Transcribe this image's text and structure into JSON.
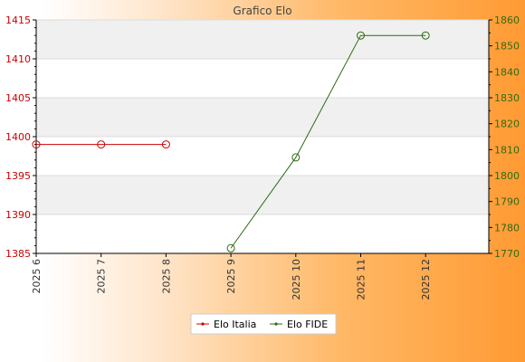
{
  "chart_data": {
    "type": "line",
    "title": "Grafico Elo",
    "categories": [
      "2025 6",
      "2025 7",
      "2025 8",
      "2025 9",
      "2025 10",
      "2025 11",
      "2025 12"
    ],
    "y_left": {
      "min": 1385,
      "max": 1415,
      "ticks": [
        1385,
        1390,
        1395,
        1400,
        1405,
        1410,
        1415
      ]
    },
    "y_right": {
      "min": 1770,
      "max": 1860,
      "ticks": [
        1770,
        1780,
        1790,
        1800,
        1810,
        1820,
        1830,
        1840,
        1850,
        1860
      ]
    },
    "grid": true,
    "legend_position": "bottom",
    "series": [
      {
        "name": "Elo Italia",
        "axis": "left",
        "color": "#cc0000",
        "values": [
          1399,
          1399,
          1399,
          null,
          null,
          null,
          null
        ]
      },
      {
        "name": "Elo FIDE",
        "axis": "right",
        "color": "#2e6b12",
        "values": [
          null,
          null,
          null,
          1772,
          1807,
          1854,
          1854
        ]
      }
    ]
  }
}
